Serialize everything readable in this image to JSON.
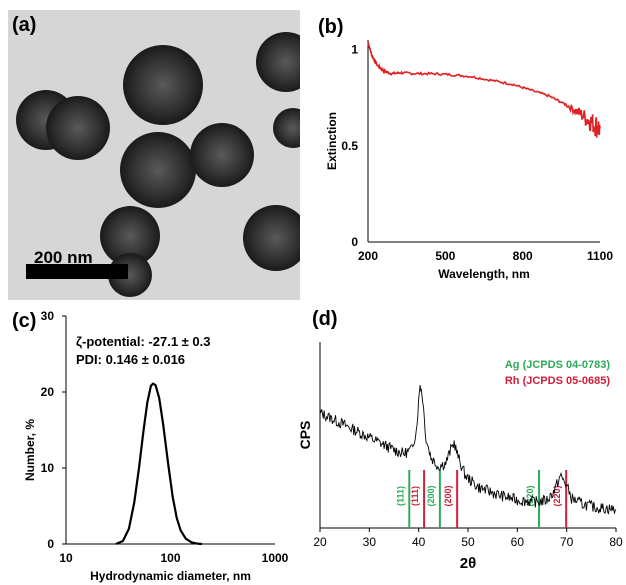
{
  "panels": {
    "a": "(a)",
    "b": "(b)",
    "c": "(c)",
    "d": "(d)"
  },
  "tem": {
    "scale_bar_label": "200 nm"
  },
  "chart_data": [
    {
      "panel": "b",
      "type": "line",
      "xlabel": "Wavelength, nm",
      "ylabel": "Extinction",
      "xlim": [
        200,
        1100
      ],
      "ylim": [
        0,
        1.05
      ],
      "xticks": [
        "200",
        "500",
        "800",
        "1100"
      ],
      "yticks": [
        "0",
        "0.5",
        "1"
      ],
      "color": "#e02020",
      "series": [
        {
          "x": [
            200,
            215,
            235,
            260,
            290,
            330,
            380,
            450,
            520,
            600,
            680,
            760,
            830,
            900,
            960,
            1010,
            1050,
            1080,
            1100
          ],
          "y": [
            1.04,
            0.97,
            0.92,
            0.89,
            0.875,
            0.88,
            0.875,
            0.875,
            0.87,
            0.86,
            0.84,
            0.82,
            0.79,
            0.76,
            0.72,
            0.68,
            0.64,
            0.61,
            0.59
          ]
        }
      ]
    },
    {
      "panel": "c",
      "type": "line",
      "xscale": "log",
      "xlabel": "Hydrodynamic diameter, nm",
      "ylabel": "Number, %",
      "xlim": [
        10,
        1000
      ],
      "ylim": [
        0,
        30
      ],
      "xticks": [
        "10",
        "100",
        "1000"
      ],
      "yticks": [
        "0",
        "10",
        "20",
        "30"
      ],
      "annotations": [
        "ζ-potential: -27.1 ± 0.3",
        "PDI: 0.146 ± 0.016"
      ],
      "color": "#000000",
      "series": [
        {
          "x": [
            30,
            35,
            40,
            45,
            50,
            55,
            60,
            65,
            68,
            72,
            78,
            85,
            95,
            105,
            115,
            125,
            140,
            160,
            180,
            200
          ],
          "y": [
            0,
            0.4,
            2,
            5.5,
            10,
            14.8,
            18.6,
            20.8,
            21.1,
            20.9,
            19.2,
            15.8,
            10.5,
            6.2,
            3.4,
            1.8,
            0.7,
            0.2,
            0.05,
            0
          ]
        }
      ]
    },
    {
      "panel": "d",
      "type": "line",
      "xlabel": "2θ",
      "ylabel": "CPS",
      "xlim": [
        20,
        80
      ],
      "xticks": [
        "20",
        "30",
        "40",
        "50",
        "60",
        "70",
        "80"
      ],
      "color": "#000000",
      "legend": [
        {
          "label": "Ag (JCPDS 04-0783)",
          "color": "#2eaa5a"
        },
        {
          "label": "Rh (JCPDS 05-0685)",
          "color": "#d0203a"
        }
      ],
      "reference_lines": [
        {
          "x": 38.1,
          "label": "(111)",
          "color": "#2eaa5a"
        },
        {
          "x": 41.1,
          "label": "(111)",
          "color": "#d0203a"
        },
        {
          "x": 44.3,
          "label": "(200)",
          "color": "#2eaa5a"
        },
        {
          "x": 47.8,
          "label": "(200)",
          "color": "#d0203a"
        },
        {
          "x": 64.4,
          "label": "(220)",
          "color": "#2eaa5a"
        },
        {
          "x": 69.9,
          "label": "(220)",
          "color": "#d0203a"
        }
      ],
      "series": [
        {
          "x": [
            20,
            23,
            26,
            29,
            32,
            35,
            37,
            38.5,
            39.5,
            40.3,
            40.8,
            41.5,
            42.5,
            44,
            45.5,
            46.5,
            47.2,
            48,
            49.5,
            52,
            56,
            60,
            64,
            66,
            67.5,
            68.7,
            69.8,
            71,
            73,
            76,
            80
          ],
          "y": [
            0.62,
            0.58,
            0.54,
            0.5,
            0.46,
            0.42,
            0.4,
            0.42,
            0.52,
            0.78,
            0.7,
            0.48,
            0.38,
            0.33,
            0.35,
            0.42,
            0.46,
            0.38,
            0.28,
            0.22,
            0.18,
            0.15,
            0.14,
            0.15,
            0.2,
            0.28,
            0.24,
            0.16,
            0.13,
            0.11,
            0.1
          ]
        }
      ]
    }
  ]
}
